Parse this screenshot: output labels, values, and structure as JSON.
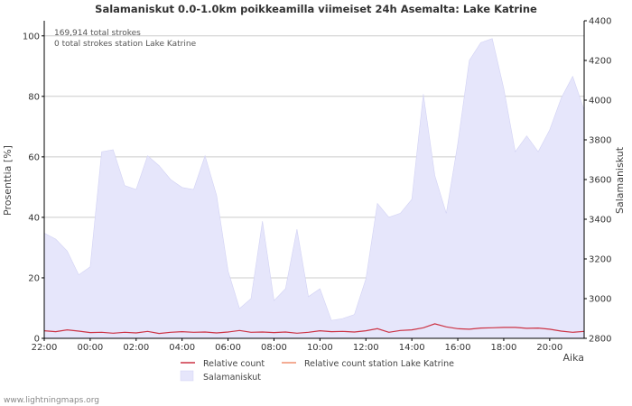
{
  "chart_data": {
    "type": "area",
    "title": "Salamaniskut 0.0-1.0km poikkeamilla viimeiset 24h Asemalta: Lake Katrine",
    "ylabel_left": "Prosenttia  [%]",
    "ylabel_right": "Salamaniskut",
    "xlabel": "Aika",
    "annotations": [
      "169,914 total strokes",
      "0 total strokes station Lake Katrine"
    ],
    "y_left": {
      "min": 0,
      "max": 105,
      "ticks": [
        0,
        20,
        40,
        60,
        80,
        100
      ],
      "tick_labels": [
        "0",
        "20",
        "40",
        "60",
        "80",
        "100"
      ]
    },
    "y_right": {
      "min": 2800,
      "max": 4400,
      "ticks": [
        2800,
        3000,
        3200,
        3400,
        3600,
        3800,
        4000,
        4200,
        4400
      ],
      "tick_labels": [
        "2800",
        "3000",
        "3200",
        "3400",
        "3600",
        "3800",
        "4000",
        "4200",
        "4400"
      ]
    },
    "x_range_hours": [
      0,
      23.5
    ],
    "x_ticks": [
      0,
      2,
      4,
      6,
      8,
      10,
      12,
      14,
      16,
      18,
      20,
      22
    ],
    "x_tick_labels": [
      "22:00",
      "00:00",
      "02:00",
      "04:00",
      "06:00",
      "08:00",
      "10:00",
      "12:00",
      "14:00",
      "16:00",
      "18:00",
      "20:00"
    ],
    "grid": true,
    "legend": [
      "Relative count",
      "Relative count station Lake Katrine",
      "Salamaniskut"
    ],
    "colors": {
      "relative": "#cc3344",
      "station": "#f09070",
      "area_fill": "#e6e6fb",
      "area_line": "#d2d2f4",
      "grid": "#cccccc",
      "axis": "#000000",
      "text": "#333333"
    },
    "series": [
      {
        "name": "Salamaniskut",
        "axis": "right",
        "x": [
          0,
          0.5,
          1,
          1.5,
          2,
          2.5,
          3,
          3.5,
          4,
          4.5,
          5,
          5.5,
          6,
          6.5,
          7,
          7.5,
          8,
          8.5,
          9,
          9.5,
          10,
          10.5,
          11,
          11.5,
          12,
          12.5,
          13,
          13.5,
          14,
          14.5,
          15,
          15.5,
          16,
          16.5,
          17,
          17.5,
          18,
          18.5,
          19,
          19.5,
          20,
          20.5,
          21,
          21.5,
          22,
          22.5,
          23,
          23.5
        ],
        "values": [
          3330,
          3300,
          3240,
          3120,
          3160,
          3740,
          3750,
          3570,
          3550,
          3720,
          3670,
          3600,
          3560,
          3550,
          3720,
          3520,
          3140,
          2950,
          3000,
          3390,
          2990,
          3050,
          3350,
          3010,
          3050,
          2890,
          2900,
          2920,
          3100,
          3480,
          3410,
          3430,
          3500,
          4030,
          3620,
          3430,
          3780,
          4200,
          4290,
          4310,
          4060,
          3740,
          3820,
          3740,
          3850,
          4010,
          4120,
          3950
        ]
      },
      {
        "name": "Relative count",
        "axis": "left",
        "x": [
          0,
          0.5,
          1,
          1.5,
          2,
          2.5,
          3,
          3.5,
          4,
          4.5,
          5,
          5.5,
          6,
          6.5,
          7,
          7.5,
          8,
          8.5,
          9,
          9.5,
          10,
          10.5,
          11,
          11.5,
          12,
          12.5,
          13,
          13.5,
          14,
          14.5,
          15,
          15.5,
          16,
          16.5,
          17,
          17.5,
          18,
          18.5,
          19,
          19.5,
          20,
          20.5,
          21,
          21.5,
          22,
          22.5,
          23,
          23.5
        ],
        "values": [
          2.5,
          2.2,
          2.8,
          2.4,
          1.9,
          2.0,
          1.7,
          2.0,
          1.8,
          2.3,
          1.6,
          2.0,
          2.2,
          2.0,
          2.1,
          1.8,
          2.1,
          2.6,
          2.0,
          2.1,
          1.9,
          2.1,
          1.7,
          2.0,
          2.5,
          2.2,
          2.3,
          2.1,
          2.5,
          3.2,
          2.0,
          2.6,
          2.8,
          3.5,
          4.8,
          3.8,
          3.2,
          3.0,
          3.4,
          3.5,
          3.6,
          3.6,
          3.3,
          3.4,
          3.0,
          2.4,
          2.0,
          2.3
        ]
      },
      {
        "name": "Relative count station Lake Katrine",
        "axis": "left",
        "x": [],
        "values": []
      }
    ]
  },
  "watermark": "www.lightningmaps.org"
}
